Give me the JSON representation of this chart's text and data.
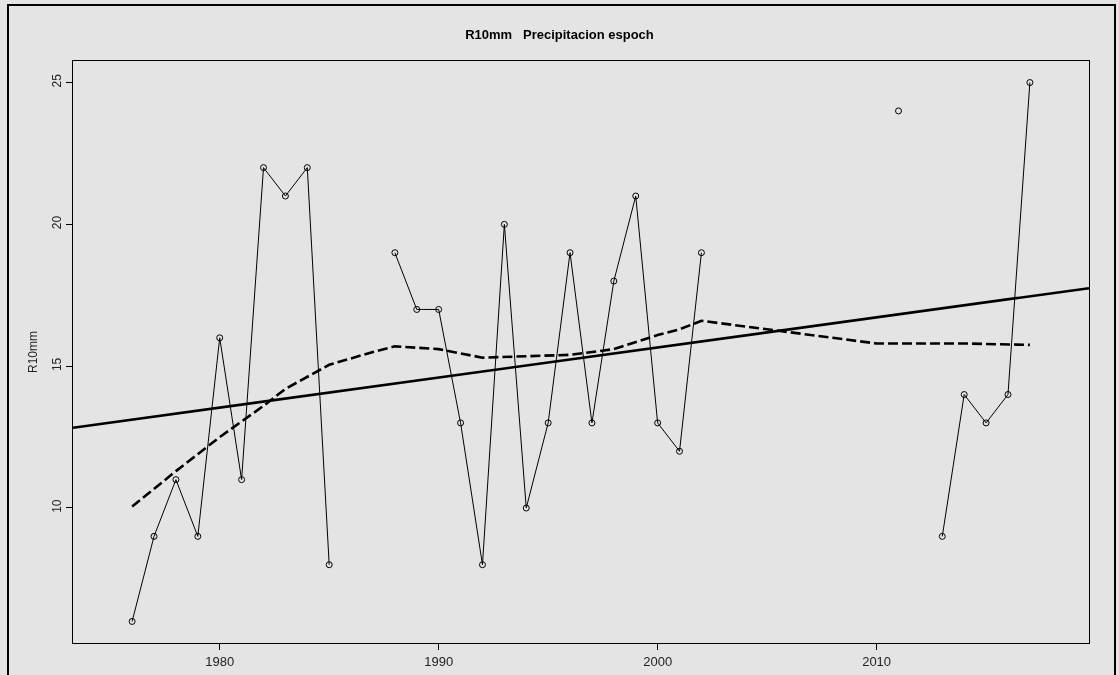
{
  "chart_data": {
    "type": "line",
    "title": "R10mm   Precipitacion espoch",
    "ylabel": "R10mm",
    "xlim": [
      1973.3,
      2019.7
    ],
    "xticks": [
      1980,
      1990,
      2000,
      2010
    ],
    "ylim": [
      5.24,
      25.76
    ],
    "yticks": [
      10,
      15,
      20,
      25
    ],
    "series": [
      {
        "color": "#000000",
        "marker": "circle",
        "line_style": "solid",
        "x": [
          1976,
          1977,
          1978,
          1979,
          1980,
          1981,
          1982,
          1983,
          1984,
          1985,
          1986,
          1987,
          1988,
          1989,
          1990,
          1991,
          1992,
          1993,
          1994,
          1995,
          1996,
          1997,
          1998,
          1999,
          2000,
          2001,
          2002,
          2003,
          2004,
          2005,
          2006,
          2007,
          2008,
          2009,
          2010,
          2011,
          2012,
          2013,
          2014,
          2015,
          2016,
          2017
        ],
        "values": [
          6,
          9,
          11,
          9,
          16,
          11,
          22,
          21,
          22,
          8,
          null,
          null,
          19,
          17,
          17,
          13,
          8,
          20,
          10,
          13,
          19,
          13,
          18,
          21,
          13,
          12,
          19,
          null,
          null,
          null,
          null,
          null,
          null,
          null,
          null,
          24,
          null,
          9,
          14,
          13,
          14,
          25
        ]
      },
      {
        "type": "line",
        "color": "#000000",
        "marker": "none",
        "line_style": "solid",
        "x": [
          1973.3,
          2019.7
        ],
        "values": [
          12.83,
          17.75
        ]
      },
      {
        "type": "line",
        "color": "#000000",
        "marker": "none",
        "line_style": "dashed",
        "x": [
          1976,
          1978,
          1980,
          1982,
          1983,
          1985,
          1987,
          1988,
          1990,
          1992,
          1994,
          1996,
          1998,
          2000,
          2001,
          2002,
          2004,
          2006,
          2008,
          2010,
          2012,
          2014,
          2017
        ],
        "values": [
          10.05,
          11.3,
          12.5,
          13.6,
          14.2,
          15.05,
          15.5,
          15.7,
          15.6,
          15.3,
          15.35,
          15.4,
          15.6,
          16.1,
          16.3,
          16.6,
          16.4,
          16.2,
          16.0,
          15.8,
          15.8,
          15.8,
          15.75
        ]
      }
    ]
  }
}
